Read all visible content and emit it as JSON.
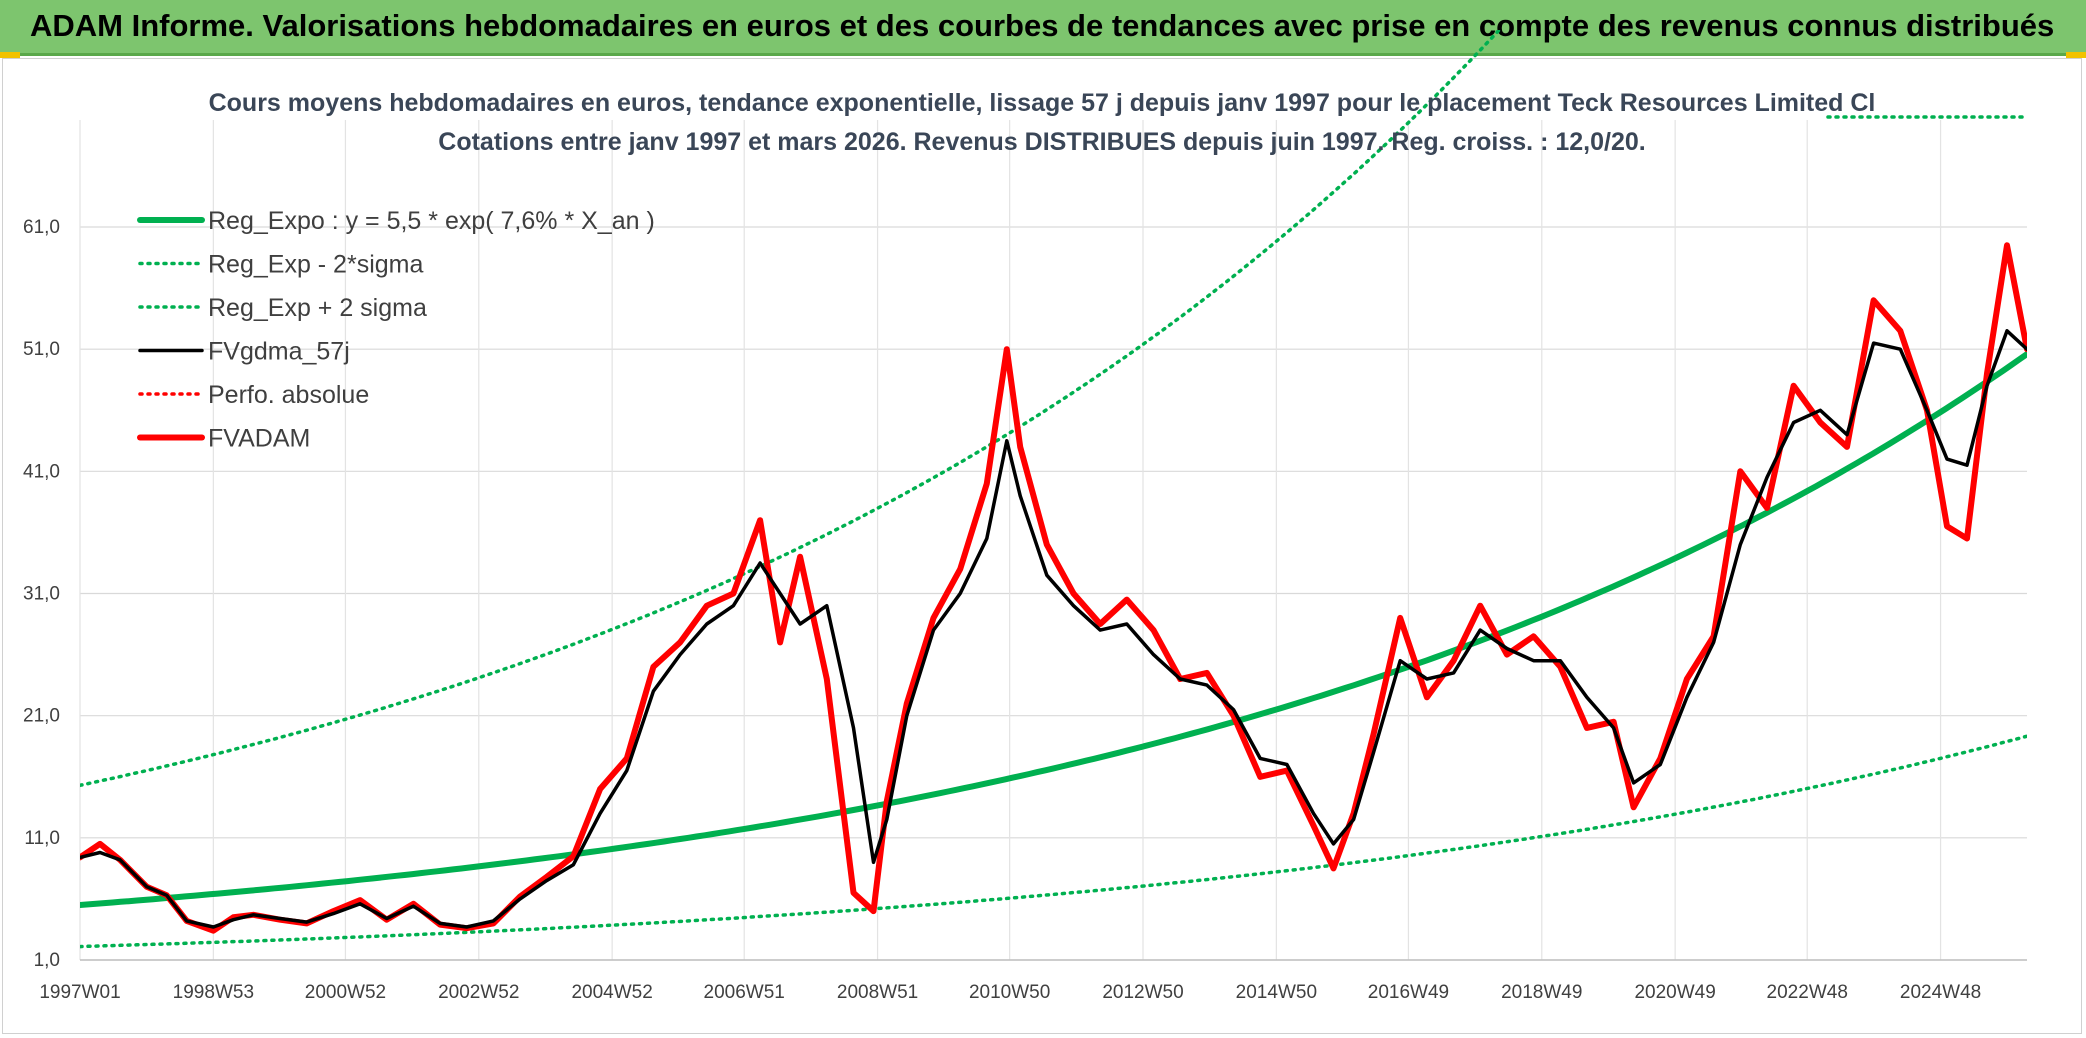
{
  "header": {
    "title": "ADAM Informe. Valorisations hebdomadaires en euros et des courbes de tendances avec prise en compte des revenus connus distribués"
  },
  "chart_data": {
    "type": "line",
    "title": "Cours moyens hebdomadaires en euros, tendance exponentielle, lissage 57 j depuis janv 1997 pour le placement Teck Resources Limited Cl",
    "subtitle": "Cotations entre janv 1997 et mars 2026. Revenus DISTRIBUES depuis juin 1997. Reg. croiss. : 12,0/20.",
    "xlabel": "",
    "ylabel": "",
    "ylim": [
      1,
      64
    ],
    "yticks": [
      "1,0",
      "11,0",
      "21,0",
      "31,0",
      "41,0",
      "51,0",
      "61,0"
    ],
    "yticks_values": [
      1,
      11,
      21,
      31,
      41,
      51,
      61
    ],
    "xticks": [
      "1997W01",
      "1998W53",
      "2000W52",
      "2002W52",
      "2004W52",
      "2006W51",
      "2008W51",
      "2010W50",
      "2012W50",
      "2014W50",
      "2016W49",
      "2018W49",
      "2020W49",
      "2022W48",
      "2024W48"
    ],
    "xlim": [
      1997.0,
      2026.2
    ],
    "grid": true,
    "legend_position": "top-left",
    "series": [
      {
        "name": "Reg_Expo : y = 5,5 * exp( 7,6% *  X_an )",
        "color": "#00b050",
        "style": "solid-thick",
        "function": {
          "a": 5.5,
          "rate": 0.076
        }
      },
      {
        "name": "Reg_Exp - 2*sigma",
        "color": "#00b050",
        "style": "dotted",
        "function": {
          "a": 2.1,
          "rate": 0.076
        }
      },
      {
        "name": "Reg_Exp + 2 sigma",
        "color": "#00b050",
        "style": "dotted",
        "function": {
          "a": 15.3,
          "rate": 0.076
        }
      },
      {
        "name": "FVgdma_57j",
        "color": "#000000",
        "style": "solid",
        "x": [
          1997.0,
          1997.3,
          1997.6,
          1998.0,
          1998.3,
          1998.6,
          1999.0,
          1999.3,
          1999.6,
          2000.0,
          2000.4,
          2000.8,
          2001.2,
          2001.6,
          2002.0,
          2002.4,
          2002.8,
          2003.2,
          2003.6,
          2004.0,
          2004.4,
          2004.8,
          2005.2,
          2005.6,
          2006.0,
          2006.4,
          2006.8,
          2007.2,
          2007.5,
          2007.8,
          2008.2,
          2008.6,
          2008.9,
          2009.1,
          2009.4,
          2009.8,
          2010.2,
          2010.6,
          2010.9,
          2011.1,
          2011.5,
          2011.9,
          2012.3,
          2012.7,
          2013.1,
          2013.5,
          2013.9,
          2014.3,
          2014.7,
          2015.1,
          2015.5,
          2015.8,
          2016.1,
          2016.4,
          2016.8,
          2017.2,
          2017.6,
          2018.0,
          2018.4,
          2018.8,
          2019.2,
          2019.6,
          2020.0,
          2020.3,
          2020.7,
          2021.1,
          2021.5,
          2021.9,
          2022.3,
          2022.7,
          2023.1,
          2023.5,
          2023.9,
          2024.3,
          2024.7,
          2025.0,
          2025.3,
          2025.6,
          2025.9,
          2026.2
        ],
        "y": [
          9.4,
          9.8,
          9.2,
          7.0,
          6.3,
          4.2,
          3.7,
          4.3,
          4.7,
          4.4,
          4.1,
          4.8,
          5.6,
          4.4,
          5.4,
          4.0,
          3.7,
          4.2,
          6.0,
          7.5,
          8.8,
          13.0,
          16.5,
          23.0,
          26.0,
          28.5,
          30.0,
          33.5,
          31.0,
          28.5,
          30.0,
          20.0,
          9.0,
          12.5,
          21.0,
          28.0,
          31.0,
          35.5,
          43.5,
          39.0,
          32.5,
          30.0,
          28.0,
          28.5,
          26.0,
          24.0,
          23.5,
          21.5,
          17.5,
          17.0,
          13.0,
          10.5,
          12.5,
          18.0,
          25.5,
          24.0,
          24.5,
          28.0,
          26.5,
          25.5,
          25.5,
          22.5,
          20.0,
          15.5,
          17.0,
          22.5,
          27.0,
          35.0,
          40.5,
          45.0,
          46.0,
          44.0,
          51.5,
          51.0,
          46.0,
          42.0,
          41.5,
          48.0,
          52.5,
          51.0
        ]
      },
      {
        "name": "Perfo. absolue",
        "color": "#ff0000",
        "style": "dotted"
      },
      {
        "name": "FVADAM",
        "color": "#ff0000",
        "style": "solid-thick",
        "x": [
          1997.0,
          1997.3,
          1997.6,
          1998.0,
          1998.3,
          1998.6,
          1999.0,
          1999.3,
          1999.6,
          2000.0,
          2000.4,
          2000.8,
          2001.2,
          2001.6,
          2002.0,
          2002.4,
          2002.8,
          2003.2,
          2003.6,
          2004.0,
          2004.4,
          2004.8,
          2005.2,
          2005.6,
          2006.0,
          2006.4,
          2006.8,
          2007.2,
          2007.5,
          2007.8,
          2008.2,
          2008.6,
          2008.9,
          2009.1,
          2009.4,
          2009.8,
          2010.2,
          2010.6,
          2010.9,
          2011.1,
          2011.5,
          2011.9,
          2012.3,
          2012.7,
          2013.1,
          2013.5,
          2013.9,
          2014.3,
          2014.7,
          2015.1,
          2015.5,
          2015.8,
          2016.1,
          2016.4,
          2016.8,
          2017.2,
          2017.6,
          2018.0,
          2018.4,
          2018.8,
          2019.2,
          2019.6,
          2020.0,
          2020.3,
          2020.7,
          2021.1,
          2021.5,
          2021.9,
          2022.3,
          2022.7,
          2023.1,
          2023.5,
          2023.9,
          2024.3,
          2024.7,
          2025.0,
          2025.3,
          2025.6,
          2025.9,
          2026.2
        ],
        "y": [
          9.4,
          10.5,
          9.2,
          7.0,
          6.3,
          4.2,
          3.4,
          4.5,
          4.7,
          4.3,
          4.0,
          5.0,
          5.9,
          4.3,
          5.6,
          3.9,
          3.6,
          4.0,
          6.2,
          7.8,
          9.5,
          15.0,
          17.5,
          25.0,
          27.0,
          30.0,
          31.0,
          37.0,
          27.0,
          34.0,
          24.0,
          6.5,
          5.0,
          14.0,
          22.0,
          29.0,
          33.0,
          40.0,
          51.0,
          43.0,
          35.0,
          31.0,
          28.5,
          30.5,
          28.0,
          24.0,
          24.5,
          21.0,
          16.0,
          16.5,
          12.0,
          8.5,
          13.0,
          19.5,
          29.0,
          22.5,
          25.5,
          30.0,
          26.0,
          27.5,
          25.0,
          20.0,
          20.5,
          13.5,
          17.5,
          24.0,
          27.5,
          41.0,
          38.0,
          48.0,
          45.0,
          43.0,
          55.0,
          52.5,
          46.0,
          36.5,
          35.5,
          49.0,
          59.5,
          51.0
        ]
      }
    ]
  }
}
